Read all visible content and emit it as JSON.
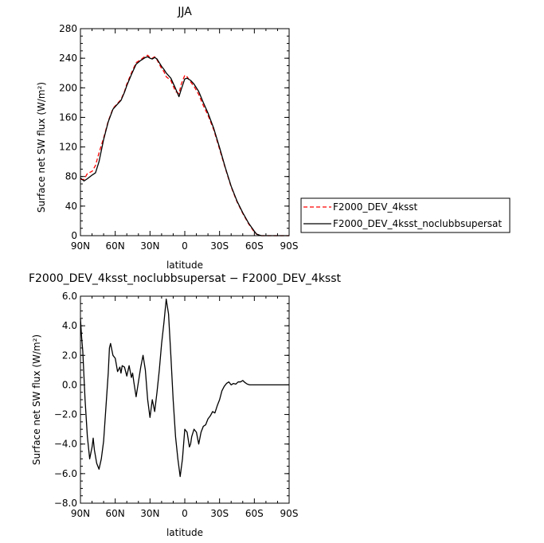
{
  "chart_data": [
    {
      "type": "line",
      "title": "JJA",
      "xlabel": "latitude",
      "ylabel": "Surface net SW flux (W/m²)",
      "x_ticks": [
        "90N",
        "60N",
        "30N",
        "0",
        "30S",
        "60S",
        "90S"
      ],
      "y_ticks": [
        "0",
        "40",
        "80",
        "120",
        "160",
        "200",
        "240",
        "280"
      ],
      "xlim": [
        90,
        -90
      ],
      "ylim": [
        0,
        280
      ],
      "legend_position": "right",
      "series": [
        {
          "name": "F2000_DEV_4ksst",
          "color": "#ff0000",
          "dash": "dashed",
          "x": [
            90,
            87,
            84,
            80,
            77,
            74,
            70,
            66,
            62,
            58,
            55,
            52,
            50,
            46,
            42,
            38,
            34,
            32,
            30,
            28,
            26,
            24,
            22,
            20,
            18,
            16,
            12,
            8,
            5,
            3,
            0,
            -2,
            -5,
            -8,
            -12,
            -16,
            -20,
            -25,
            -30,
            -35,
            -40,
            -45,
            -50,
            -55,
            -60,
            -62,
            -64,
            -66,
            -70,
            -75,
            -80,
            -85,
            -90
          ],
          "y": [
            76,
            76,
            84,
            87,
            95,
            112,
            132,
            155,
            172,
            179,
            184,
            195,
            205,
            220,
            234,
            238,
            243,
            244,
            241,
            240,
            242,
            238,
            232,
            226,
            222,
            215,
            210,
            195,
            192,
            205,
            217,
            215,
            208,
            202,
            191,
            176,
            163,
            143,
            117,
            91,
            66,
            46,
            30,
            16,
            5,
            2,
            1,
            0,
            0,
            0,
            0,
            0,
            0
          ]
        },
        {
          "name": "F2000_DEV_4ksst_noclubbsupersat",
          "color": "#000000",
          "dash": "solid",
          "x": [
            90,
            87,
            84,
            80,
            77,
            74,
            70,
            66,
            62,
            58,
            55,
            52,
            50,
            46,
            42,
            38,
            34,
            32,
            30,
            28,
            26,
            24,
            22,
            20,
            18,
            16,
            12,
            8,
            5,
            3,
            0,
            -2,
            -5,
            -8,
            -12,
            -16,
            -20,
            -25,
            -30,
            -35,
            -40,
            -45,
            -50,
            -55,
            -60,
            -62,
            -64,
            -66,
            -70,
            -75,
            -80,
            -85,
            -90
          ],
          "y": [
            78,
            74,
            77,
            82,
            85,
            100,
            130,
            154,
            171,
            178,
            183,
            194,
            203,
            218,
            232,
            237,
            241,
            242,
            240,
            239,
            241,
            239,
            234,
            229,
            225,
            220,
            213,
            199,
            188,
            198,
            212,
            213,
            210,
            205,
            195,
            180,
            166,
            145,
            119,
            92,
            67,
            47,
            31,
            17,
            6,
            2,
            1,
            0,
            0,
            0,
            0,
            0,
            0
          ]
        }
      ]
    },
    {
      "type": "line",
      "title": "F2000_DEV_4ksst_noclubbsupersat − F2000_DEV_4ksst",
      "xlabel": "latitude",
      "ylabel": "Surface net SW flux (W/m²)",
      "x_ticks": [
        "90N",
        "60N",
        "30N",
        "0",
        "30S",
        "60S",
        "90S"
      ],
      "y_ticks": [
        "6.0",
        "4.0",
        "2.0",
        "0.0",
        "−2.0",
        "−4.0",
        "−6.0",
        "−8.0"
      ],
      "xlim": [
        90,
        -90
      ],
      "ylim": [
        -8,
        6
      ],
      "series": [
        {
          "name": "",
          "color": "#000000",
          "dash": "solid",
          "x": [
            90,
            89,
            88,
            86,
            84,
            82,
            80,
            79,
            78,
            76,
            74,
            72,
            70,
            68,
            66,
            65,
            64,
            62,
            60,
            58,
            56,
            55,
            54,
            52,
            50,
            48,
            46,
            45,
            44,
            42,
            40,
            38,
            36,
            34,
            32,
            30,
            28,
            26,
            24,
            22,
            20,
            18,
            16,
            14,
            12,
            10,
            8,
            6,
            4,
            2,
            0,
            -2,
            -4,
            -5,
            -6,
            -8,
            -10,
            -12,
            -14,
            -16,
            -18,
            -20,
            -22,
            -24,
            -26,
            -28,
            -30,
            -32,
            -34,
            -36,
            -38,
            -40,
            -42,
            -44,
            -46,
            -48,
            -50,
            -52,
            -54,
            -56,
            -58,
            -60,
            -62,
            -65,
            -70,
            -80,
            -90
          ],
          "y": [
            4.5,
            3.2,
            2.3,
            -1.0,
            -3.5,
            -5.0,
            -4.2,
            -3.6,
            -4.4,
            -5.3,
            -5.7,
            -5.0,
            -3.8,
            -1.5,
            0.8,
            2.5,
            2.8,
            2.0,
            1.8,
            0.9,
            1.2,
            0.8,
            1.3,
            1.2,
            0.6,
            1.3,
            0.5,
            0.8,
            0.2,
            -0.8,
            0.2,
            1.2,
            2.0,
            1.0,
            -1.0,
            -2.2,
            -1.0,
            -1.8,
            -0.5,
            1.0,
            2.8,
            4.2,
            5.8,
            4.8,
            2.0,
            -1.0,
            -3.5,
            -5.0,
            -6.2,
            -5.0,
            -3.0,
            -3.2,
            -4.2,
            -4.0,
            -3.5,
            -3.0,
            -3.2,
            -4.0,
            -3.2,
            -2.8,
            -2.7,
            -2.3,
            -2.1,
            -1.8,
            -1.9,
            -1.4,
            -1.0,
            -0.4,
            -0.1,
            0.1,
            0.2,
            0.0,
            0.1,
            0.05,
            0.2,
            0.2,
            0.3,
            0.15,
            0.05,
            0.0,
            0.0,
            0.0,
            0.0,
            0.0,
            0.0,
            0.0,
            0.0
          ]
        }
      ]
    }
  ]
}
